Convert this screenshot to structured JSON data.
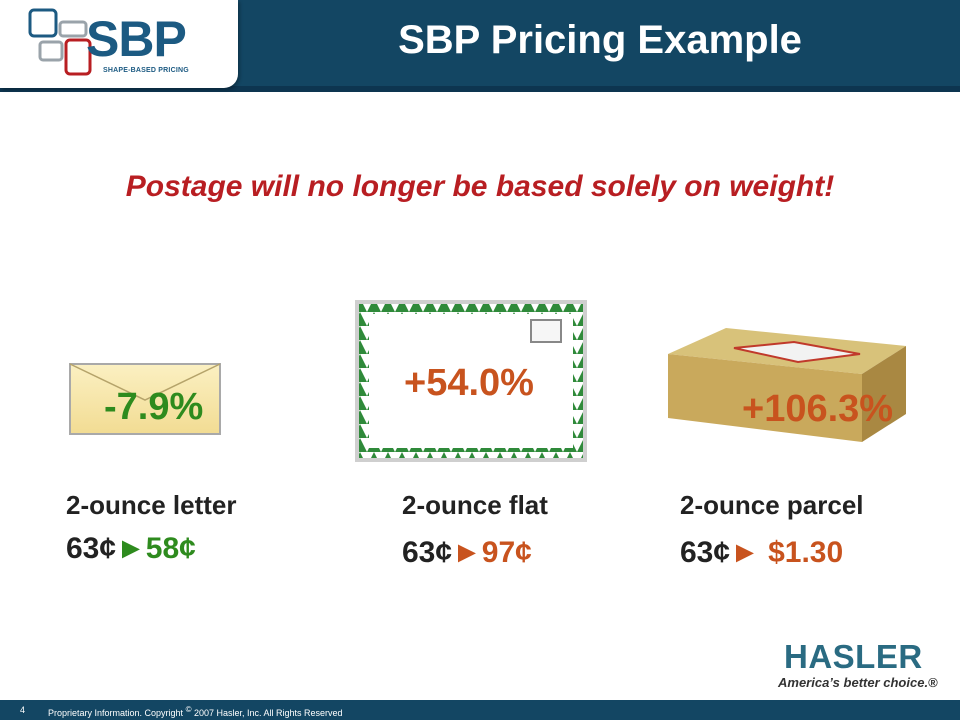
{
  "header": {
    "logo_text": "SBP",
    "logo_subtext": "SHAPE-BASED PRICING",
    "title": "SBP Pricing Example"
  },
  "subtitle": "Postage will no longer be based solely on weight!",
  "items": [
    {
      "label": "2-ounce letter",
      "change": "-7.9%",
      "old_price": "63¢",
      "arrow": "►",
      "new_price": "58¢"
    },
    {
      "label": "2-ounce flat",
      "change": "+54.0%",
      "old_price": "63¢",
      "arrow": "►",
      "new_price": "97¢"
    },
    {
      "label": "2-ounce parcel",
      "change": "+106.3%",
      "old_price": "63¢",
      "arrow": "► ",
      "new_price": "$1.30"
    }
  ],
  "colors": {
    "decrease": "#2e8b1e",
    "increase": "#c8531e",
    "header_bg": "#134663",
    "subtitle": "#b81e22"
  },
  "brand": {
    "name": "HASLER",
    "tagline": "America’s better choice.®"
  },
  "footer": {
    "page_number": "4",
    "copyright_prefix": "Proprietary Information. Copyright",
    "copyright_symbol": "©",
    "copyright_suffix": " 2007 Hasler, Inc. All Rights Reserved"
  }
}
